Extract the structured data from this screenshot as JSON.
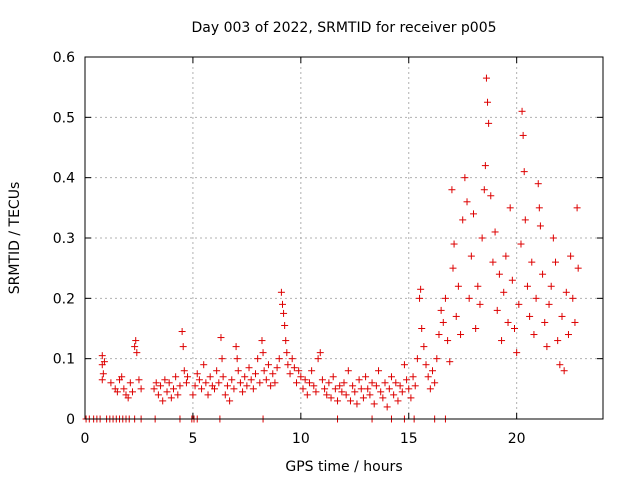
{
  "chart_data": {
    "type": "scatter",
    "title": "Day 003 of 2022, SRMTID for receiver p005",
    "xlabel": "GPS time / hours",
    "ylabel": "SRMTID / TECUs",
    "xlim": [
      0,
      24
    ],
    "ylim": [
      0,
      0.6
    ],
    "xticks": [
      0,
      5,
      10,
      15,
      20
    ],
    "yticks": [
      0,
      0.1,
      0.2,
      0.3,
      0.4,
      0.5,
      0.6
    ],
    "xtick_labels": [
      "0",
      "5",
      "10",
      "15",
      "20"
    ],
    "ytick_labels": [
      "0",
      "0.1",
      "0.2",
      "0.3",
      "0.4",
      "0.5",
      "0.6"
    ],
    "grid": true,
    "marker": "+",
    "color": "#dd0000",
    "series": [
      {
        "name": "SRMTID",
        "points": [
          [
            0.8,
            0.065
          ],
          [
            0.8,
            0.09
          ],
          [
            0.8,
            0.105
          ],
          [
            0.85,
            0.075
          ],
          [
            0.9,
            0.095
          ],
          [
            1.2,
            0.06
          ],
          [
            1.4,
            0.05
          ],
          [
            1.5,
            0.045
          ],
          [
            1.6,
            0.065
          ],
          [
            1.7,
            0.07
          ],
          [
            1.8,
            0.05
          ],
          [
            1.9,
            0.04
          ],
          [
            2.0,
            0.035
          ],
          [
            2.1,
            0.06
          ],
          [
            2.2,
            0.045
          ],
          [
            2.3,
            0.12
          ],
          [
            2.35,
            0.13
          ],
          [
            2.4,
            0.11
          ],
          [
            2.5,
            0.065
          ],
          [
            2.6,
            0.05
          ],
          [
            3.2,
            0.05
          ],
          [
            3.3,
            0.06
          ],
          [
            3.4,
            0.04
          ],
          [
            3.5,
            0.055
          ],
          [
            3.6,
            0.03
          ],
          [
            3.7,
            0.065
          ],
          [
            3.8,
            0.045
          ],
          [
            3.9,
            0.06
          ],
          [
            4.0,
            0.035
          ],
          [
            4.1,
            0.05
          ],
          [
            4.2,
            0.07
          ],
          [
            4.3,
            0.04
          ],
          [
            4.4,
            0.055
          ],
          [
            4.5,
            0.145
          ],
          [
            4.55,
            0.12
          ],
          [
            4.6,
            0.08
          ],
          [
            4.7,
            0.06
          ],
          [
            4.75,
            0.07
          ],
          [
            5.0,
            0.04
          ],
          [
            5.1,
            0.055
          ],
          [
            5.2,
            0.075
          ],
          [
            5.3,
            0.065
          ],
          [
            5.4,
            0.05
          ],
          [
            5.5,
            0.09
          ],
          [
            5.6,
            0.06
          ],
          [
            5.7,
            0.04
          ],
          [
            5.8,
            0.07
          ],
          [
            5.9,
            0.055
          ],
          [
            6.0,
            0.05
          ],
          [
            6.1,
            0.08
          ],
          [
            6.2,
            0.06
          ],
          [
            6.3,
            0.135
          ],
          [
            6.35,
            0.1
          ],
          [
            6.4,
            0.07
          ],
          [
            6.5,
            0.04
          ],
          [
            6.6,
            0.055
          ],
          [
            6.7,
            0.03
          ],
          [
            6.8,
            0.065
          ],
          [
            6.9,
            0.05
          ],
          [
            7.0,
            0.12
          ],
          [
            7.05,
            0.1
          ],
          [
            7.1,
            0.08
          ],
          [
            7.2,
            0.06
          ],
          [
            7.3,
            0.045
          ],
          [
            7.4,
            0.07
          ],
          [
            7.5,
            0.055
          ],
          [
            7.6,
            0.085
          ],
          [
            7.7,
            0.065
          ],
          [
            7.8,
            0.05
          ],
          [
            7.9,
            0.075
          ],
          [
            8.0,
            0.1
          ],
          [
            8.1,
            0.06
          ],
          [
            8.2,
            0.13
          ],
          [
            8.25,
            0.11
          ],
          [
            8.3,
            0.08
          ],
          [
            8.4,
            0.065
          ],
          [
            8.5,
            0.09
          ],
          [
            8.6,
            0.055
          ],
          [
            8.7,
            0.075
          ],
          [
            8.8,
            0.06
          ],
          [
            8.9,
            0.085
          ],
          [
            9.0,
            0.1
          ],
          [
            9.1,
            0.21
          ],
          [
            9.15,
            0.19
          ],
          [
            9.2,
            0.175
          ],
          [
            9.25,
            0.155
          ],
          [
            9.3,
            0.13
          ],
          [
            9.35,
            0.11
          ],
          [
            9.4,
            0.09
          ],
          [
            9.5,
            0.075
          ],
          [
            9.6,
            0.1
          ],
          [
            9.7,
            0.085
          ],
          [
            9.8,
            0.06
          ],
          [
            9.9,
            0.08
          ],
          [
            10.0,
            0.07
          ],
          [
            10.1,
            0.05
          ],
          [
            10.2,
            0.065
          ],
          [
            10.3,
            0.04
          ],
          [
            10.4,
            0.06
          ],
          [
            10.5,
            0.08
          ],
          [
            10.6,
            0.055
          ],
          [
            10.7,
            0.045
          ],
          [
            10.8,
            0.1
          ],
          [
            10.9,
            0.11
          ],
          [
            11.0,
            0.065
          ],
          [
            11.1,
            0.05
          ],
          [
            11.2,
            0.04
          ],
          [
            11.3,
            0.06
          ],
          [
            11.4,
            0.035
          ],
          [
            11.5,
            0.07
          ],
          [
            11.6,
            0.05
          ],
          [
            11.7,
            0.03
          ],
          [
            11.8,
            0.055
          ],
          [
            11.9,
            0.045
          ],
          [
            12.0,
            0.06
          ],
          [
            12.1,
            0.04
          ],
          [
            12.2,
            0.08
          ],
          [
            12.3,
            0.03
          ],
          [
            12.4,
            0.055
          ],
          [
            12.5,
            0.045
          ],
          [
            12.6,
            0.025
          ],
          [
            12.7,
            0.065
          ],
          [
            12.8,
            0.05
          ],
          [
            12.9,
            0.035
          ],
          [
            13.0,
            0.07
          ],
          [
            13.1,
            0.05
          ],
          [
            13.2,
            0.04
          ],
          [
            13.3,
            0.06
          ],
          [
            13.4,
            0.025
          ],
          [
            13.5,
            0.055
          ],
          [
            13.6,
            0.08
          ],
          [
            13.7,
            0.045
          ],
          [
            13.8,
            0.035
          ],
          [
            13.9,
            0.06
          ],
          [
            14.0,
            0.02
          ],
          [
            14.1,
            0.05
          ],
          [
            14.2,
            0.07
          ],
          [
            14.3,
            0.04
          ],
          [
            14.4,
            0.06
          ],
          [
            14.5,
            0.03
          ],
          [
            14.6,
            0.055
          ],
          [
            14.7,
            0.045
          ],
          [
            14.8,
            0.09
          ],
          [
            14.9,
            0.065
          ],
          [
            15.0,
            0.05
          ],
          [
            15.1,
            0.035
          ],
          [
            15.2,
            0.07
          ],
          [
            15.3,
            0.055
          ],
          [
            15.4,
            0.1
          ],
          [
            15.5,
            0.2
          ],
          [
            15.55,
            0.215
          ],
          [
            15.6,
            0.15
          ],
          [
            15.7,
            0.12
          ],
          [
            15.8,
            0.09
          ],
          [
            15.9,
            0.07
          ],
          [
            16.0,
            0.05
          ],
          [
            16.1,
            0.08
          ],
          [
            16.2,
            0.06
          ],
          [
            16.3,
            0.1
          ],
          [
            16.4,
            0.14
          ],
          [
            16.5,
            0.18
          ],
          [
            16.6,
            0.16
          ],
          [
            16.7,
            0.2
          ],
          [
            16.8,
            0.13
          ],
          [
            16.9,
            0.095
          ],
          [
            17.0,
            0.38
          ],
          [
            17.05,
            0.25
          ],
          [
            17.1,
            0.29
          ],
          [
            17.2,
            0.17
          ],
          [
            17.3,
            0.22
          ],
          [
            17.4,
            0.14
          ],
          [
            17.5,
            0.33
          ],
          [
            17.6,
            0.4
          ],
          [
            17.7,
            0.36
          ],
          [
            17.8,
            0.2
          ],
          [
            17.9,
            0.27
          ],
          [
            18.0,
            0.34
          ],
          [
            18.1,
            0.15
          ],
          [
            18.2,
            0.22
          ],
          [
            18.3,
            0.19
          ],
          [
            18.4,
            0.3
          ],
          [
            18.5,
            0.38
          ],
          [
            18.55,
            0.42
          ],
          [
            18.6,
            0.565
          ],
          [
            18.65,
            0.525
          ],
          [
            18.7,
            0.49
          ],
          [
            18.8,
            0.37
          ],
          [
            18.9,
            0.26
          ],
          [
            19.0,
            0.31
          ],
          [
            19.1,
            0.18
          ],
          [
            19.2,
            0.24
          ],
          [
            19.3,
            0.13
          ],
          [
            19.4,
            0.21
          ],
          [
            19.5,
            0.27
          ],
          [
            19.6,
            0.16
          ],
          [
            19.7,
            0.35
          ],
          [
            19.8,
            0.23
          ],
          [
            19.9,
            0.15
          ],
          [
            20.0,
            0.11
          ],
          [
            20.1,
            0.19
          ],
          [
            20.2,
            0.29
          ],
          [
            20.25,
            0.51
          ],
          [
            20.3,
            0.47
          ],
          [
            20.35,
            0.41
          ],
          [
            20.4,
            0.33
          ],
          [
            20.5,
            0.22
          ],
          [
            20.6,
            0.17
          ],
          [
            20.7,
            0.26
          ],
          [
            20.8,
            0.14
          ],
          [
            20.9,
            0.2
          ],
          [
            21.0,
            0.39
          ],
          [
            21.05,
            0.35
          ],
          [
            21.1,
            0.32
          ],
          [
            21.2,
            0.24
          ],
          [
            21.3,
            0.16
          ],
          [
            21.4,
            0.12
          ],
          [
            21.5,
            0.19
          ],
          [
            21.6,
            0.22
          ],
          [
            21.7,
            0.3
          ],
          [
            21.8,
            0.26
          ],
          [
            21.9,
            0.13
          ],
          [
            22.0,
            0.09
          ],
          [
            22.1,
            0.17
          ],
          [
            22.2,
            0.08
          ],
          [
            22.3,
            0.21
          ],
          [
            22.4,
            0.14
          ],
          [
            22.5,
            0.27
          ],
          [
            22.6,
            0.2
          ],
          [
            22.7,
            0.16
          ],
          [
            22.8,
            0.35
          ],
          [
            22.85,
            0.25
          ]
        ],
        "zero_times": [
          0.05,
          0.2,
          0.4,
          0.55,
          0.7,
          1.0,
          1.15,
          1.3,
          1.45,
          1.6,
          1.75,
          1.9,
          2.05,
          2.3,
          2.6,
          3.25,
          4.4,
          4.95,
          5.05,
          5.2,
          6.25,
          8.25,
          11.7,
          13.3,
          14.2,
          14.8,
          15.25,
          16.2,
          16.7
        ]
      }
    ]
  }
}
